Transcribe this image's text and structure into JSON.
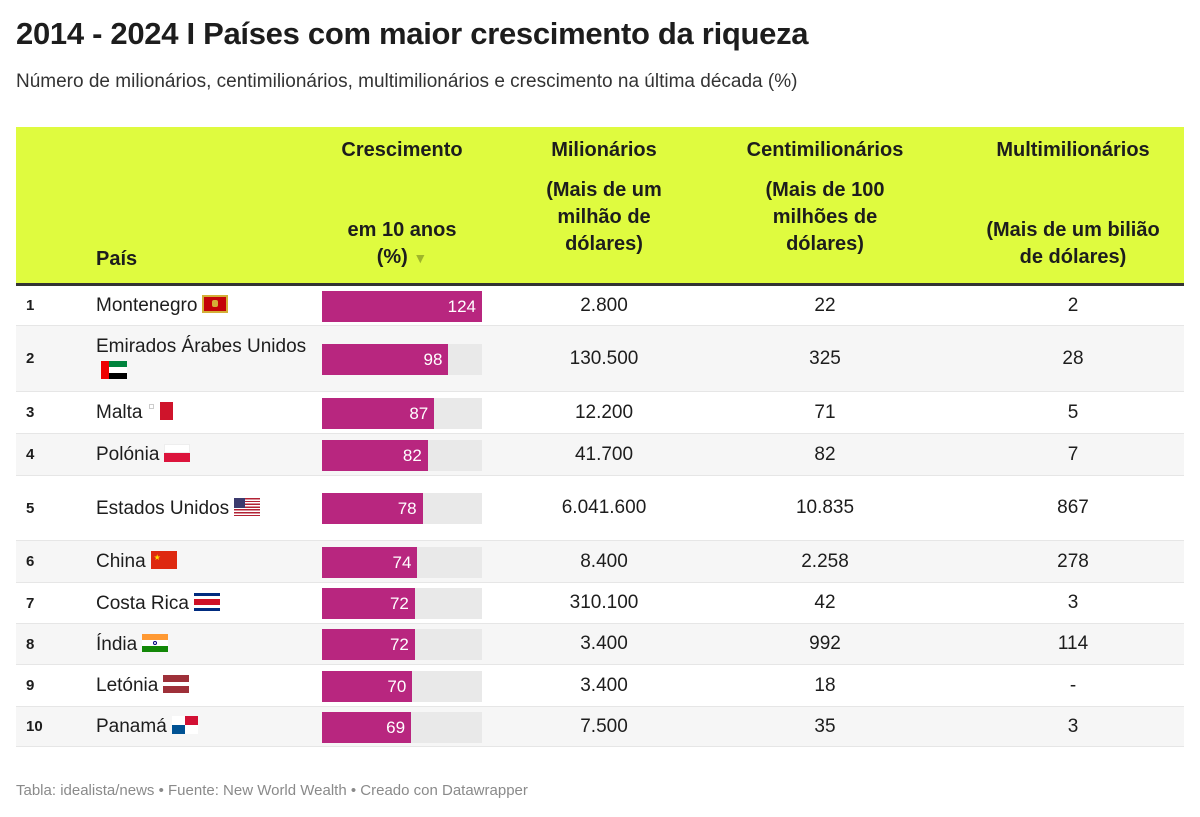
{
  "title": "2014 - 2024 I Países com maior crescimento da riqueza",
  "subtitle": "Número de milionários, centimilionários, multimilionários e crescimento na última década (%)",
  "header": {
    "pais": "País",
    "cresc1": "Crescimento",
    "cresc2": "em 10 anos",
    "cresc3": "(%) ",
    "sort_icon": "▼",
    "mil1": "Milionários",
    "mil2": "(Mais de um",
    "mil3": "milhão de",
    "mil4": "dólares)",
    "cent1": "Centimilionários",
    "cent2": "(Mais de 100",
    "cent3": "milhões de",
    "cent4": "dólares)",
    "multi1": "Multimilionários",
    "multi2": "(Mais de um bilião",
    "multi3": "de dólares)"
  },
  "colors": {
    "header_bg": "#dffb3f",
    "bar": "#b8267f",
    "bar_bg": "#e9e9e9"
  },
  "chart_data": {
    "type": "table",
    "columns": [
      "País",
      "Crescimento em 10 anos (%)",
      "Milionários",
      "Centimilionários",
      "Multimilionários"
    ],
    "bar_max": 124,
    "rows": [
      {
        "rank": "1",
        "country": "Montenegro",
        "flag": "montenegro",
        "growth": 124,
        "mil": "2.800",
        "cent": "22",
        "multi": "2"
      },
      {
        "rank": "2",
        "country": "Emirados Árabes Unidos",
        "flag": "uae",
        "growth": 98,
        "mil": "130.500",
        "cent": "325",
        "multi": "28"
      },
      {
        "rank": "3",
        "country": "Malta",
        "flag": "malta",
        "growth": 87,
        "mil": "12.200",
        "cent": "71",
        "multi": "5"
      },
      {
        "rank": "4",
        "country": "Polónia",
        "flag": "poland",
        "growth": 82,
        "mil": "41.700",
        "cent": "82",
        "multi": "7"
      },
      {
        "rank": "5",
        "country": "Estados Unidos",
        "flag": "usa",
        "growth": 78,
        "mil": "6.041.600",
        "cent": "10.835",
        "multi": "867"
      },
      {
        "rank": "6",
        "country": "China",
        "flag": "china",
        "growth": 74,
        "mil": "8.400",
        "cent": "2.258",
        "multi": "278"
      },
      {
        "rank": "7",
        "country": "Costa Rica",
        "flag": "costa-rica",
        "growth": 72,
        "mil": "310.100",
        "cent": "42",
        "multi": "3"
      },
      {
        "rank": "8",
        "country": "Índia",
        "flag": "india",
        "growth": 72,
        "mil": "3.400",
        "cent": "992",
        "multi": "114"
      },
      {
        "rank": "9",
        "country": "Letónia",
        "flag": "latvia",
        "growth": 70,
        "mil": "3.400",
        "cent": "18",
        "multi": "-"
      },
      {
        "rank": "10",
        "country": "Panamá",
        "flag": "panama",
        "growth": 69,
        "mil": "7.500",
        "cent": "35",
        "multi": "3"
      }
    ]
  },
  "footer": "Tabla: idealista/news  • Fuente: New World Wealth • Creado con Datawrapper"
}
